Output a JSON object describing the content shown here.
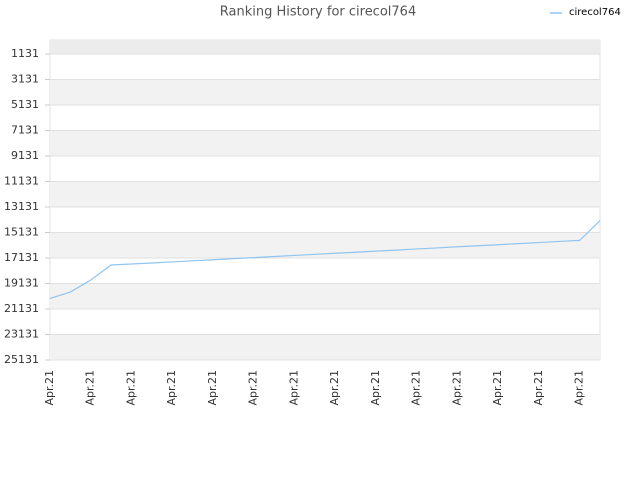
{
  "chart_data": {
    "type": "line",
    "title": "Ranking History for cirecol764",
    "categories": [
      "Apr.21",
      null,
      "Apr.21",
      null,
      "Apr.21",
      null,
      "Apr.21",
      null,
      "Apr.21",
      null,
      "Apr.21",
      null,
      "Apr.21",
      null,
      "Apr.21",
      null,
      "Apr.21",
      null,
      "Apr.21",
      null,
      "Apr.21",
      null,
      "Apr.21",
      null,
      "Apr.21",
      null,
      "Apr.21",
      null
    ],
    "series": [
      {
        "name": "cirecol764",
        "color": "#90c4f0",
        "values": [
          20300,
          19800,
          18856,
          17680,
          17600,
          17520,
          17440,
          17350,
          17270,
          17180,
          17100,
          17010,
          16930,
          16840,
          16760,
          16680,
          16590,
          16510,
          16420,
          16340,
          16250,
          16170,
          16090,
          16000,
          15920,
          15830,
          15750,
          14200
        ]
      }
    ],
    "ylim": [
      25131,
      31
    ],
    "yticks": [
      1131,
      3131,
      5131,
      7131,
      9131,
      11131,
      13131,
      15131,
      17131,
      19131,
      21131,
      23131,
      25131
    ],
    "grid": true,
    "legend": "top-right"
  }
}
